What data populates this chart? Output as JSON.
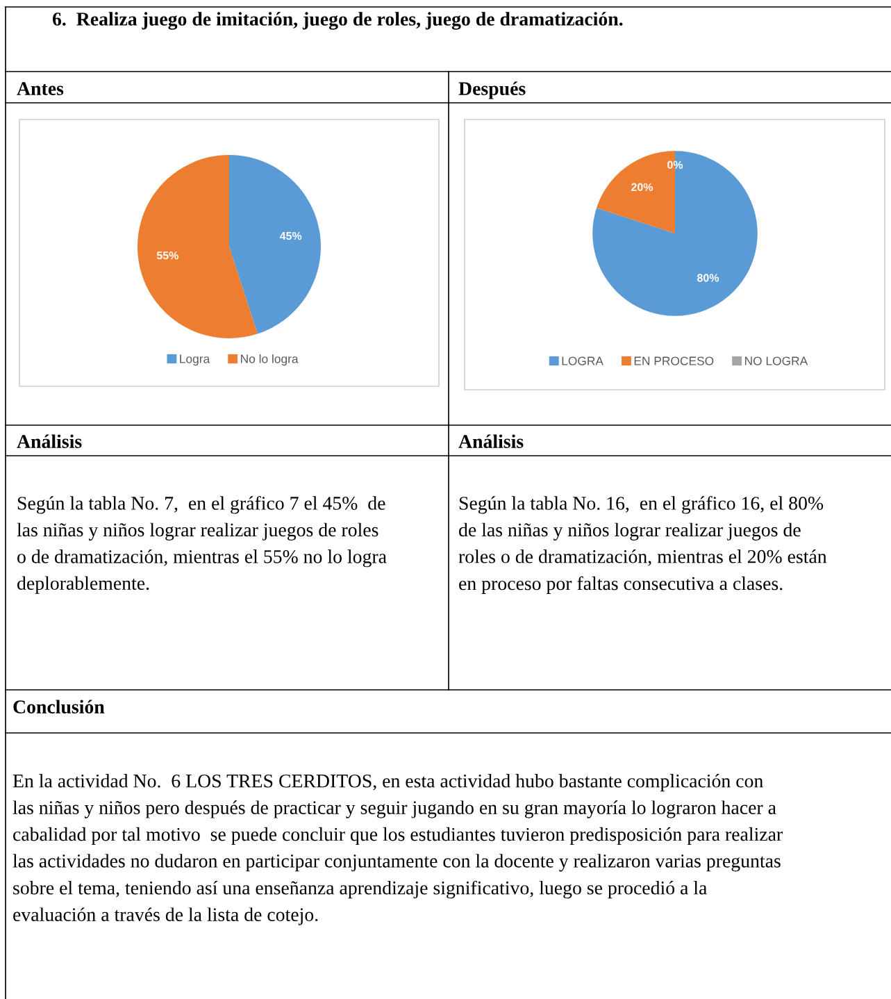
{
  "chart_data": [
    {
      "type": "pie",
      "title": "6.  Realiza juego de imitación, juego de roles, juego de dramatización.",
      "subtitle": "Antes",
      "categories": [
        "Logra",
        "No lo logra"
      ],
      "values": [
        45,
        55
      ],
      "colors": [
        "#5b9bd5",
        "#ed7d31"
      ],
      "value_labels": [
        "45%",
        "55%"
      ],
      "legend": "bottom",
      "annotations": [
        "Análisis",
        "Según la tabla No. 7,  en el gráfico 7 el 45%  de\nlas niñas y niños lograr realizar juegos de roles\no de dramatización, mientras el 55% no lo logra\ndeplorablemente.",
        "Conclusión",
        "En la actividad No.  6 LOS TRES CERDITOS, en esta actividad hubo bastante complicación con\nlas niñas y niños pero después de practicar y seguir jugando en su gran mayoría lo lograron hacer a\ncabalidad por tal motivo  se puede concluir que los estudiantes tuvieron predisposición para realizar\nlas actividades no dudaron en participar conjuntamente con la docente y realizaron varias preguntas\nsobre el tema, teniendo así una enseñanza aprendizaje significativo, luego se procedió a la\nevaluación a través de la lista de cotejo."
      ]
    },
    {
      "type": "pie",
      "subtitle": "Después",
      "categories": [
        "LOGRA",
        "EN PROCESO",
        "NO LOGRA"
      ],
      "values": [
        80,
        20,
        0
      ],
      "colors": [
        "#5b9bd5",
        "#ed7d31",
        "#a5a5a5"
      ],
      "value_labels": [
        "80%",
        "20%",
        "0%"
      ],
      "legend": "bottom",
      "annotations": [
        "Análisis",
        "Según la tabla No. 16,  en el gráfico 16, el 80%\nde las niñas y niños lograr realizar juegos de\nroles o de dramatización, mientras el 20% están\nen proceso por faltas consecutiva a clases."
      ]
    }
  ]
}
